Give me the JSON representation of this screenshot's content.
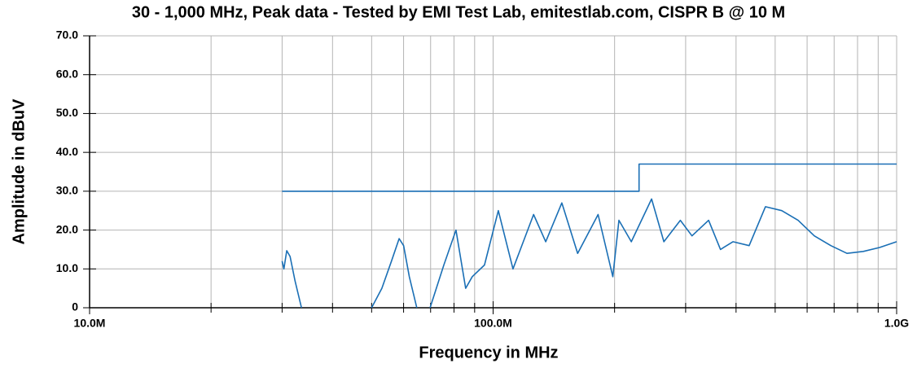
{
  "chart_data": {
    "type": "line",
    "title": "30 - 1,000 MHz, Peak data - Tested by EMI Test Lab, emitestlab.com, CISPR B @ 10 M",
    "x_label": "Frequency in MHz",
    "y_label": "Amplitude  in dBuV",
    "xscale": "log",
    "xlim": [
      10,
      1000
    ],
    "ylim": [
      0,
      70
    ],
    "xticks": [
      {
        "value": 10,
        "label": "10.0M"
      },
      {
        "value": 100,
        "label": "100.0M"
      },
      {
        "value": 1000,
        "label": "1.0G"
      }
    ],
    "xminorticks": [
      20,
      30,
      40,
      50,
      60,
      70,
      80,
      90,
      200,
      300,
      400,
      500,
      600,
      700,
      800,
      900
    ],
    "yticks": [
      0,
      {
        "value": 10,
        "label": "10.0"
      },
      {
        "value": 20,
        "label": "20.0"
      },
      {
        "value": 30,
        "label": "30.0"
      },
      {
        "value": 40,
        "label": "40.0"
      },
      {
        "value": 50,
        "label": "50.0"
      },
      {
        "value": 60,
        "label": "60.0"
      },
      {
        "value": 70,
        "label": "70.0"
      }
    ],
    "grid": true,
    "series": [
      {
        "color": "#1a6fb5",
        "x": [
          30,
          30.3,
          30.8,
          31.4,
          32.3,
          33.5,
          null,
          50,
          53,
          56,
          58.5,
          60,
          62,
          64.7,
          null,
          69.8,
          75.5,
          80.9,
          85.5,
          88.8,
          95.2,
          103,
          112,
          126,
          135,
          148,
          162,
          182,
          198,
          205,
          220,
          247,
          265,
          291,
          311,
          342,
          366,
          393,
          431,
          473,
          519,
          570,
          625,
          687,
          753,
          827,
          907,
          1000
        ],
        "values": [
          12,
          10,
          14.7,
          13.2,
          6.9,
          0,
          null,
          0,
          5,
          12,
          17.8,
          16,
          8,
          0,
          null,
          0,
          11,
          20,
          5,
          8,
          11,
          25,
          10,
          24,
          17,
          27,
          14,
          24,
          8,
          22.5,
          17,
          28,
          17,
          22.5,
          18.5,
          22.5,
          15,
          17,
          16,
          26,
          25,
          22.5,
          18.5,
          16,
          14,
          14.5,
          15.5,
          17
        ]
      },
      {
        "color": "#1a6fb5",
        "x": [
          30,
          230,
          230,
          1000
        ],
        "values": [
          30,
          30,
          37,
          37
        ]
      }
    ]
  }
}
